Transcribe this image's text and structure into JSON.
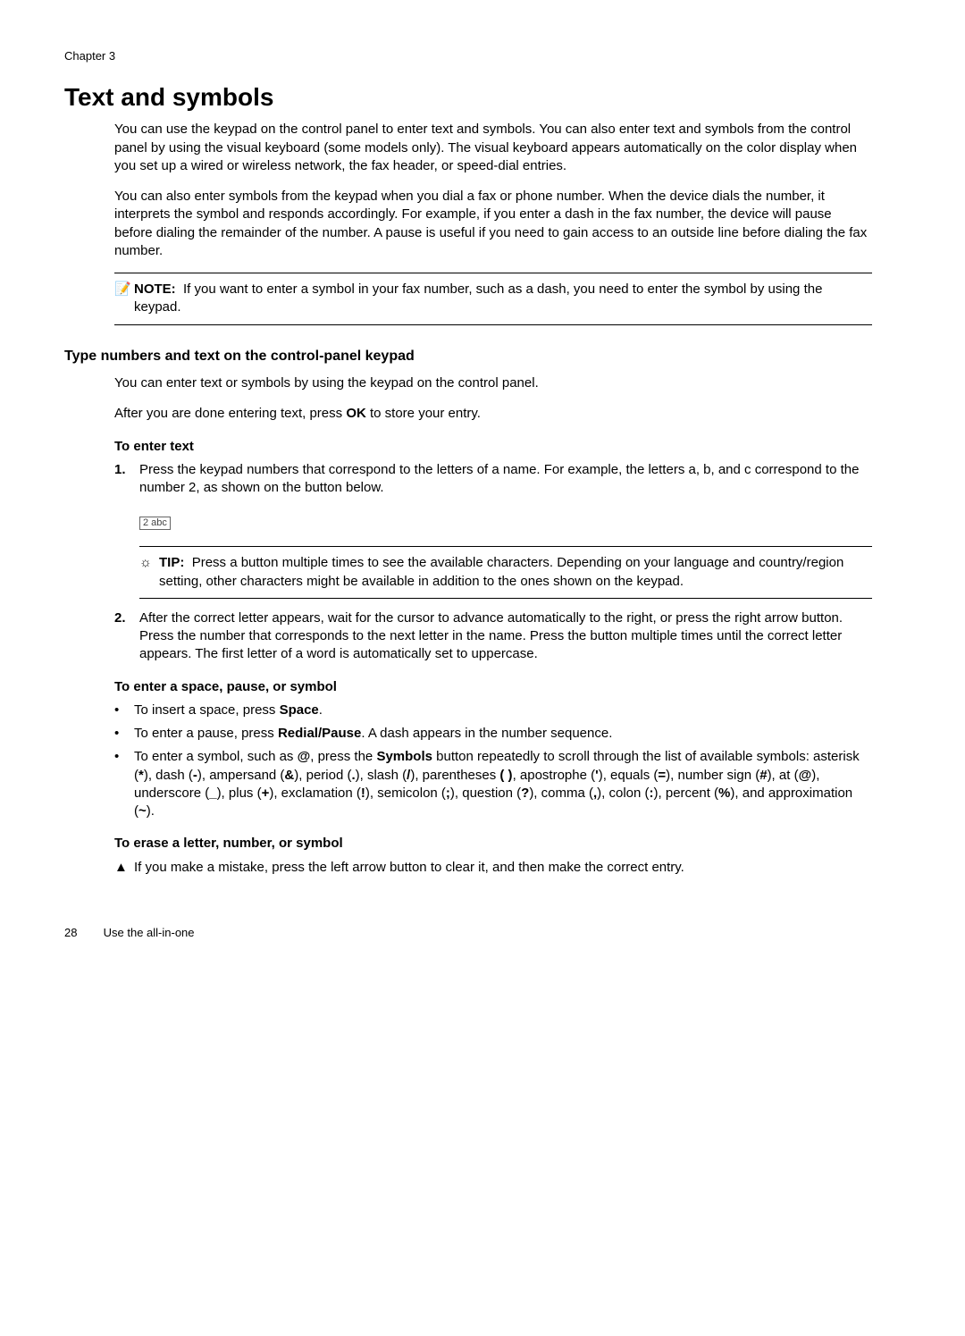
{
  "chapter_label": "Chapter 3",
  "h1": "Text and symbols",
  "intro_p1": "You can use the keypad on the control panel to enter text and symbols. You can also enter text and symbols from the control panel by using the visual keyboard (some models only). The visual keyboard appears automatically on the color display when you set up a wired or wireless network, the fax header, or speed-dial entries.",
  "intro_p2": "You can also enter symbols from the keypad when you dial a fax or phone number. When the device dials the number, it interprets the symbol and responds accordingly. For example, if you enter a dash in the fax number, the device will pause before dialing the remainder of the number. A pause is useful if you need to gain access to an outside line before dialing the fax number.",
  "note_icon": "📝",
  "note_label": "NOTE:",
  "note_text": "If you want to enter a symbol in your fax number, such as a dash, you need to enter the symbol by using the keypad.",
  "h2": "Type numbers and text on the control-panel keypad",
  "sec_p1": "You can enter text or symbols by using the keypad on the control panel.",
  "sec_p2_a": "After you are done entering text, press ",
  "sec_p2_bold": "OK",
  "sec_p2_b": " to store your entry.",
  "h3_enter_text": "To enter text",
  "step1_marker": "1.",
  "step1_text": "Press the keypad numbers that correspond to the letters of a name. For example, the letters a, b, and c correspond to the number 2, as shown on the button below.",
  "keypad_label": "2 abc",
  "tip_icon": "☼",
  "tip_label": "TIP:",
  "tip_text": "Press a button multiple times to see the available characters. Depending on your language and country/region setting, other characters might be available in addition to the ones shown on the keypad.",
  "step2_marker": "2.",
  "step2_text": "After the correct letter appears, wait for the cursor to advance automatically to the right, or press the right arrow button. Press the number that corresponds to the next letter in the name. Press the button multiple times until the correct letter appears. The first letter of a word is automatically set to uppercase.",
  "h3_space": "To enter a space, pause, or symbol",
  "bullet_marker": "•",
  "b1_a": "To insert a space, press ",
  "b1_bold": "Space",
  "b1_b": ".",
  "b2_a": "To enter a pause, press ",
  "b2_bold": "Redial/Pause",
  "b2_b": ". A dash appears in the number sequence.",
  "b3_a": "To enter a symbol, such as ",
  "b3_at1": "@",
  "b3_b": ", press the ",
  "b3_bold": "Symbols",
  "b3_c": " button repeatedly to scroll through the list of available symbols: asterisk (",
  "b3_ast": "*",
  "b3_d": "), dash (",
  "b3_dash": "-",
  "b3_e": "), ampersand (",
  "b3_amp": "&",
  "b3_f": "), period (",
  "b3_period": ".",
  "b3_g": "), slash (",
  "b3_slash": "/",
  "b3_h": "), parentheses ",
  "b3_paren": "( )",
  "b3_i": ", apostrophe (",
  "b3_apos": "'",
  "b3_j": "), equals (",
  "b3_eq": "=",
  "b3_k": "), number sign (",
  "b3_hash": "#",
  "b3_l": "), at (",
  "b3_at2": "@",
  "b3_m": "), underscore (",
  "b3_under": "_",
  "b3_n": "), plus (",
  "b3_plus": "+",
  "b3_o": "), exclamation (",
  "b3_excl": "!",
  "b3_p": "), semicolon (",
  "b3_semi": ";",
  "b3_q": "), question (",
  "b3_qm": "?",
  "b3_r": "), comma (",
  "b3_comma": ",",
  "b3_s": "), colon (",
  "b3_colon": ":",
  "b3_t": "), percent (",
  "b3_pct": "%",
  "b3_u": "), and approximation (",
  "b3_tilde": "~",
  "b3_v": ").",
  "h3_erase": "To erase a letter, number, or symbol",
  "tri_marker": "▲",
  "erase_text": "If you make a mistake, press the left arrow button to clear it, and then make the correct entry.",
  "footer_page": "28",
  "footer_section": "Use the all-in-one"
}
